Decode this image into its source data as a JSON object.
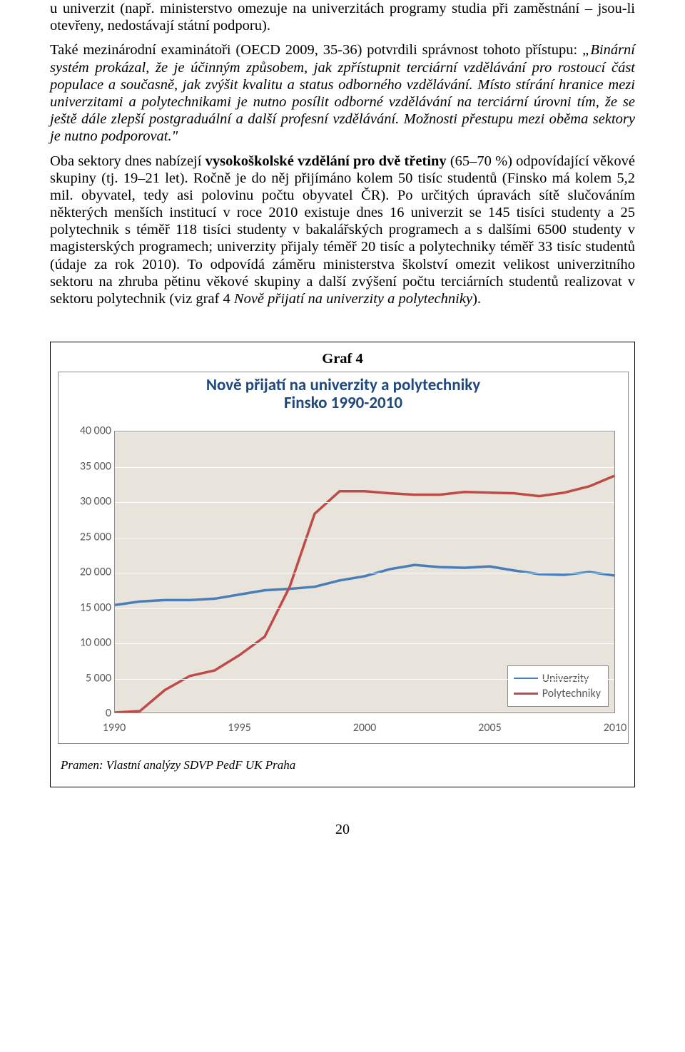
{
  "paragraphs": {
    "p1": "u univerzit (např. ministerstvo omezuje na univerzitách programy studia při zaměstnání – jsou-li otevřeny, nedostávají státní podporu).",
    "p2_lead": "Také mezinárodní examinátoři (OECD 2009, 35-36) potvrdili správnost tohoto přístupu: ",
    "p2_quote": "„Binární systém prokázal, že je účinným způsobem, jak zpřístupnit terciární vzdělávání pro rostoucí část populace a současně, jak zvýšit kvalitu a status odborného vzdělávání. Místo stírání hranice mezi univerzitami a polytechnikami je nutno posílit odborné vzdělávání na terciární úrovni tím, že se ještě dále zlepší postgraduální a další profesní vzdělávání. Možnosti přestupu mezi oběma sektory je nutno podporovat.\"",
    "p3_a": "Oba sektory dnes nabízejí ",
    "p3_b_bold": "vysokoškolské vzdělání pro dvě třetiny",
    "p3_c": " (65–70 %) odpovídající věkové skupiny (tj. 19–21 let). Ročně je do něj přijímáno kolem 50 tisíc studentů (Finsko má kolem 5,2 mil. obyvatel, tedy asi polovinu počtu obyvatel ČR). Po určitých úpravách sítě slučováním některých menších institucí v roce 2010 existuje dnes 16 univerzit se 145 tisíci studenty a 25 polytechnik s téměř 118 tisíci studenty v bakalářských programech a s dalšími 6500 studenty v magisterských programech; univerzity přijaly téměř 20 tisíc a polytechniky téměř 33 tisíc studentů (údaje za rok 2010). To odpovídá záměru ministerstva školství omezit velikost univerzitního sektoru na zhruba pětinu věkové skupiny a další zvýšení počtu terciárních studentů realizovat v sektoru polytechnik (viz graf 4 ",
    "p3_d_italic": "Nově přijatí na univerzity a polytechniky",
    "p3_e": ")."
  },
  "chart": {
    "box_label": "Graf 4",
    "title_line1": "Nově přijatí na univerzity a polytechniky",
    "title_line2": "Finsko 1990-2010",
    "title_color": "#1f497d",
    "title_fontsize": 23,
    "ylim": [
      0,
      40000
    ],
    "ytick_step": 5000,
    "yticks": [
      0,
      5000,
      10000,
      15000,
      20000,
      25000,
      30000,
      35000,
      40000
    ],
    "ytick_labels": [
      "0",
      "5 000",
      "10 000",
      "15 000",
      "20 000",
      "25 000",
      "30 000",
      "35 000",
      "40 000"
    ],
    "xlim": [
      1990,
      2010
    ],
    "xticks": [
      1990,
      1995,
      2000,
      2005,
      2010
    ],
    "xtick_labels": [
      "1990",
      "1995",
      "2000",
      "2005",
      "2010"
    ],
    "plot_bg": "#e8e4db",
    "grid_color": "#ffffff",
    "axis_label_color": "#595959",
    "axis_fontsize": 16,
    "line_width": 3.5,
    "series": [
      {
        "name": "Univerzity",
        "color": "#4a7ebb",
        "x": [
          1990,
          1991,
          1992,
          1993,
          1994,
          1995,
          1996,
          1997,
          1998,
          1999,
          2000,
          2001,
          2002,
          2003,
          2004,
          2005,
          2006,
          2007,
          2008,
          2009,
          2010
        ],
        "y": [
          15300,
          15800,
          16000,
          16000,
          16200,
          16800,
          17400,
          17600,
          17900,
          18800,
          19400,
          20400,
          21000,
          20700,
          20600,
          20800,
          20200,
          19700,
          19600,
          20000,
          19500
        ]
      },
      {
        "name": "Polytechniky",
        "color": "#be4b48",
        "x": [
          1990,
          1991,
          1992,
          1993,
          1994,
          1995,
          1996,
          1997,
          1998,
          1999,
          2000,
          2001,
          2002,
          2003,
          2004,
          2005,
          2006,
          2007,
          2008,
          2009,
          2010
        ],
        "y": [
          0,
          200,
          3200,
          5200,
          6000,
          8200,
          10800,
          17900,
          28300,
          31500,
          31500,
          31200,
          31000,
          31000,
          31400,
          31300,
          31200,
          30800,
          31300,
          32200,
          33700
        ]
      }
    ],
    "legend": {
      "items": [
        "Univerzity",
        "Polytechniky"
      ],
      "colors": [
        "#4a7ebb",
        "#be4b48"
      ]
    },
    "source": "Pramen:  Vlastní analýzy SDVP PedF UK Praha"
  },
  "page_number": "20"
}
